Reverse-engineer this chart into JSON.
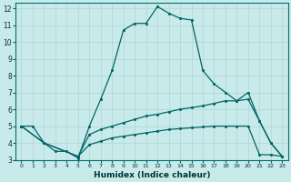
{
  "xlabel": "Humidex (Indice chaleur)",
  "bg_color": "#c8eaea",
  "grid_color": "#b0d4d4",
  "line_color": "#006666",
  "xlim": [
    -0.5,
    23.5
  ],
  "ylim": [
    3,
    12.3
  ],
  "xticks": [
    0,
    1,
    2,
    3,
    4,
    5,
    6,
    7,
    8,
    9,
    10,
    11,
    12,
    13,
    14,
    15,
    16,
    17,
    18,
    19,
    20,
    21,
    22,
    23
  ],
  "yticks": [
    3,
    4,
    5,
    6,
    7,
    8,
    9,
    10,
    11,
    12
  ],
  "line1_x": [
    0,
    1,
    2,
    3,
    4,
    5,
    6,
    7,
    8,
    9,
    10,
    11,
    12,
    13,
    14,
    15,
    16,
    17,
    18,
    19,
    20,
    21,
    22,
    23
  ],
  "line1_y": [
    5.0,
    5.0,
    4.0,
    3.5,
    3.5,
    3.1,
    5.0,
    6.6,
    8.3,
    10.7,
    11.1,
    11.1,
    12.1,
    11.7,
    11.4,
    11.3,
    8.3,
    7.5,
    7.0,
    6.5,
    7.0,
    5.3,
    4.0,
    3.2
  ],
  "line2_x": [
    0,
    2,
    5,
    6,
    7,
    8,
    9,
    10,
    11,
    12,
    13,
    14,
    15,
    16,
    17,
    18,
    19,
    20,
    21,
    22,
    23
  ],
  "line2_y": [
    5.0,
    4.0,
    3.2,
    4.5,
    4.8,
    5.0,
    5.2,
    5.4,
    5.6,
    5.7,
    5.85,
    6.0,
    6.1,
    6.2,
    6.35,
    6.5,
    6.5,
    6.6,
    5.3,
    4.0,
    3.2
  ],
  "line3_x": [
    0,
    2,
    5,
    6,
    7,
    8,
    9,
    10,
    11,
    12,
    13,
    14,
    15,
    16,
    17,
    18,
    19,
    20,
    21,
    22,
    23
  ],
  "line3_y": [
    5.0,
    4.0,
    3.2,
    3.9,
    4.1,
    4.3,
    4.4,
    4.5,
    4.6,
    4.7,
    4.8,
    4.85,
    4.9,
    4.95,
    5.0,
    5.0,
    5.0,
    5.0,
    3.3,
    3.3,
    3.2
  ]
}
